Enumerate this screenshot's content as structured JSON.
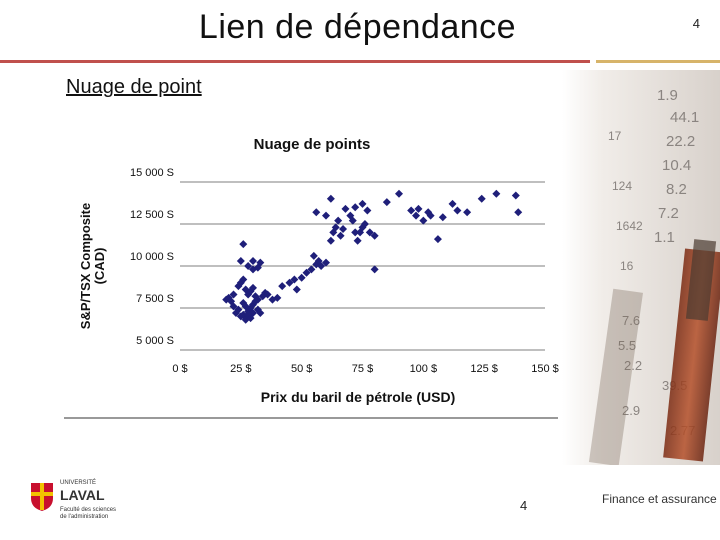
{
  "slide": {
    "title": "Lien de dépendance",
    "page_number": "4",
    "subtitle": "Nuage de point",
    "footer_page_number": "4",
    "footer_brand": "Finance et assurance"
  },
  "logo": {
    "line1": "UNIVERSITÉ",
    "line2": "LAVAL",
    "line3": "Faculté des sciences",
    "line4": "de l'administration"
  },
  "colors": {
    "red_rule": "#c0504d",
    "gold_rule": "#d7b46a",
    "marker": "#1f1f7a"
  },
  "chart_data": {
    "type": "scatter",
    "title": "Nuage de points",
    "xlabel": "Prix du baril de pétrole (USD)",
    "ylabel_line1": "S&P/TSX Composite",
    "ylabel_line2": "(CAD)",
    "xlim": [
      0,
      150
    ],
    "ylim": [
      5000,
      15000
    ],
    "x_ticks": [
      0,
      25,
      50,
      75,
      100,
      125,
      150
    ],
    "x_tick_labels": [
      "0 $",
      "25 $",
      "50 $",
      "75 $",
      "100 $",
      "125 $",
      "150 $"
    ],
    "y_ticks": [
      5000,
      7500,
      10000,
      12500,
      15000
    ],
    "y_tick_labels": [
      "5 000 S",
      "7 500 S",
      "10 000 S",
      "12 500 S",
      "15 000 S"
    ],
    "grid": "horizontal",
    "legend": "none",
    "points": [
      [
        19,
        8000
      ],
      [
        20,
        8100
      ],
      [
        21,
        7900
      ],
      [
        22,
        7600
      ],
      [
        23,
        7200
      ],
      [
        24,
        7400
      ],
      [
        22,
        8300
      ],
      [
        25,
        7000
      ],
      [
        26,
        7100
      ],
      [
        27,
        6800
      ],
      [
        28,
        7300
      ],
      [
        29,
        7500
      ],
      [
        30,
        7200
      ],
      [
        24,
        8800
      ],
      [
        25,
        9000
      ],
      [
        26,
        9200
      ],
      [
        27,
        8600
      ],
      [
        28,
        8300
      ],
      [
        29,
        8500
      ],
      [
        30,
        8700
      ],
      [
        31,
        8200
      ],
      [
        32,
        8000
      ],
      [
        26,
        7800
      ],
      [
        27,
        7600
      ],
      [
        28,
        7100
      ],
      [
        29,
        6900
      ],
      [
        30,
        7700
      ],
      [
        31,
        7900
      ],
      [
        32,
        7400
      ],
      [
        33,
        7200
      ],
      [
        34,
        8200
      ],
      [
        35,
        8400
      ],
      [
        25,
        10300
      ],
      [
        28,
        10000
      ],
      [
        30,
        9800
      ],
      [
        32,
        9900
      ],
      [
        33,
        10200
      ],
      [
        26,
        11300
      ],
      [
        30,
        10300
      ],
      [
        36,
        8300
      ],
      [
        38,
        8000
      ],
      [
        40,
        8100
      ],
      [
        42,
        8800
      ],
      [
        45,
        9000
      ],
      [
        47,
        9200
      ],
      [
        48,
        8600
      ],
      [
        50,
        9300
      ],
      [
        52,
        9600
      ],
      [
        54,
        9800
      ],
      [
        55,
        10600
      ],
      [
        56,
        10100
      ],
      [
        57,
        10300
      ],
      [
        58,
        10000
      ],
      [
        60,
        10200
      ],
      [
        62,
        11500
      ],
      [
        63,
        12000
      ],
      [
        64,
        12300
      ],
      [
        65,
        12700
      ],
      [
        66,
        11800
      ],
      [
        67,
        12200
      ],
      [
        68,
        13400
      ],
      [
        70,
        13000
      ],
      [
        71,
        12700
      ],
      [
        72,
        12000
      ],
      [
        73,
        11500
      ],
      [
        74,
        12000
      ],
      [
        75,
        12300
      ],
      [
        76,
        12500
      ],
      [
        78,
        12000
      ],
      [
        80,
        11800
      ],
      [
        56,
        13200
      ],
      [
        60,
        13000
      ],
      [
        62,
        14000
      ],
      [
        72,
        13500
      ],
      [
        75,
        13700
      ],
      [
        77,
        13300
      ],
      [
        80,
        9800
      ],
      [
        85,
        13800
      ],
      [
        90,
        14300
      ],
      [
        95,
        13300
      ],
      [
        97,
        13000
      ],
      [
        98,
        13400
      ],
      [
        100,
        12700
      ],
      [
        102,
        13200
      ],
      [
        103,
        13000
      ],
      [
        106,
        11600
      ],
      [
        108,
        12900
      ],
      [
        112,
        13700
      ],
      [
        114,
        13300
      ],
      [
        118,
        13200
      ],
      [
        124,
        14000
      ],
      [
        130,
        14300
      ],
      [
        138,
        14200
      ],
      [
        139,
        13200
      ]
    ]
  }
}
